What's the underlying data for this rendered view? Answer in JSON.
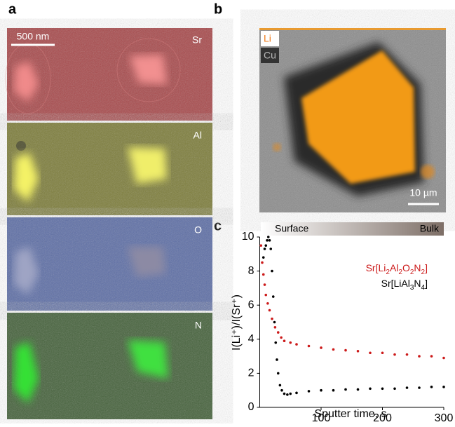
{
  "panels": [
    {
      "letter": "a",
      "scale_bar": "500 nm",
      "channels": [
        "Sr",
        "Al",
        "O",
        "N"
      ]
    },
    {
      "letter": "b",
      "legend": [
        "Li",
        "Cu"
      ],
      "scale_bar": "10 µm"
    },
    {
      "letter": "c",
      "gradient_labels": [
        "Surface",
        "Bulk"
      ]
    }
  ],
  "chart_data": {
    "type": "scatter",
    "x_label": "Sputter time, s",
    "y_label": "I(Li⁺)/I(Sr⁺)",
    "xlim": [
      0,
      300
    ],
    "xticks": [
      100,
      200,
      300
    ],
    "ylim": [
      0,
      10
    ],
    "yticks": [
      0,
      2,
      4,
      6,
      8,
      10
    ],
    "series": [
      {
        "name": "Sr[Li2Al2O2N2]",
        "color": "#cc1a1a",
        "x": [
          2,
          4,
          6,
          8,
          10,
          13,
          16,
          20,
          25,
          30,
          35,
          40,
          50,
          60,
          80,
          100,
          120,
          140,
          160,
          180,
          200,
          220,
          240,
          260,
          280,
          300
        ],
        "values": [
          9.5,
          8.5,
          7.8,
          7.2,
          6.6,
          6.1,
          5.7,
          5.2,
          4.7,
          4.4,
          4.1,
          3.9,
          3.8,
          3.7,
          3.6,
          3.5,
          3.4,
          3.35,
          3.3,
          3.2,
          3.2,
          3.1,
          3.1,
          3.0,
          3.0,
          2.9
        ]
      },
      {
        "name": "Sr[LiAl3N4]",
        "color": "#000000",
        "x": [
          6,
          8,
          10,
          12,
          14,
          16,
          18,
          20,
          22,
          24,
          26,
          28,
          30,
          33,
          36,
          40,
          45,
          50,
          60,
          80,
          100,
          120,
          140,
          160,
          180,
          200,
          220,
          240,
          260,
          280,
          300
        ],
        "values": [
          8.8,
          9.3,
          9.5,
          9.8,
          10,
          9.8,
          9.3,
          8,
          6.5,
          5,
          3.8,
          2.8,
          2,
          1.3,
          1,
          0.8,
          0.75,
          0.8,
          0.85,
          0.95,
          1.0,
          1.0,
          1.05,
          1.05,
          1.1,
          1.1,
          1.1,
          1.15,
          1.15,
          1.2,
          1.2
        ]
      }
    ]
  }
}
